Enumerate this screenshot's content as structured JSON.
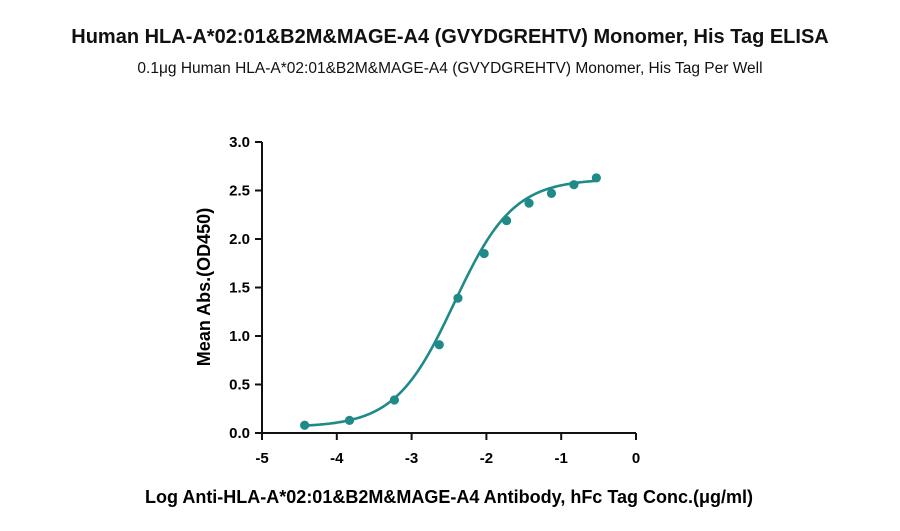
{
  "chart_data": {
    "type": "scatter",
    "title": "Human HLA-A*02:01&B2M&MAGE-A4 (GVYDGREHTV) Monomer, His Tag ELISA",
    "subtitle": "0.1μg Human HLA-A*02:01&B2M&MAGE-A4 (GVYDGREHTV) Monomer, His Tag Per Well",
    "xlabel": "Log Anti-HLA-A*02:01&B2M&MAGE-A4 Antibody, hFc Tag Conc.(μg/ml)",
    "ylabel": "Mean Abs.(OD450)",
    "xlim": [
      -5,
      0
    ],
    "ylim": [
      0,
      3.0
    ],
    "xticks": [
      "-5",
      "-4",
      "-3",
      "-2",
      "-1",
      "0"
    ],
    "yticks": [
      "0.0",
      "0.5",
      "1.0",
      "1.5",
      "2.0",
      "2.5",
      "3.0"
    ],
    "grid": false,
    "series": [
      {
        "color": "#1f8a88",
        "x": [
          -4.43,
          -3.83,
          -3.23,
          -2.63,
          -2.38,
          -2.03,
          -1.73,
          -1.43,
          -1.13,
          -0.83,
          -0.53
        ],
        "y": [
          0.08,
          0.13,
          0.34,
          0.91,
          1.39,
          1.85,
          2.19,
          2.37,
          2.47,
          2.56,
          2.63
        ]
      }
    ],
    "fit": {
      "bottom": 0.06,
      "top": 2.62,
      "logEC50": -2.43,
      "hill": 1.1
    }
  }
}
